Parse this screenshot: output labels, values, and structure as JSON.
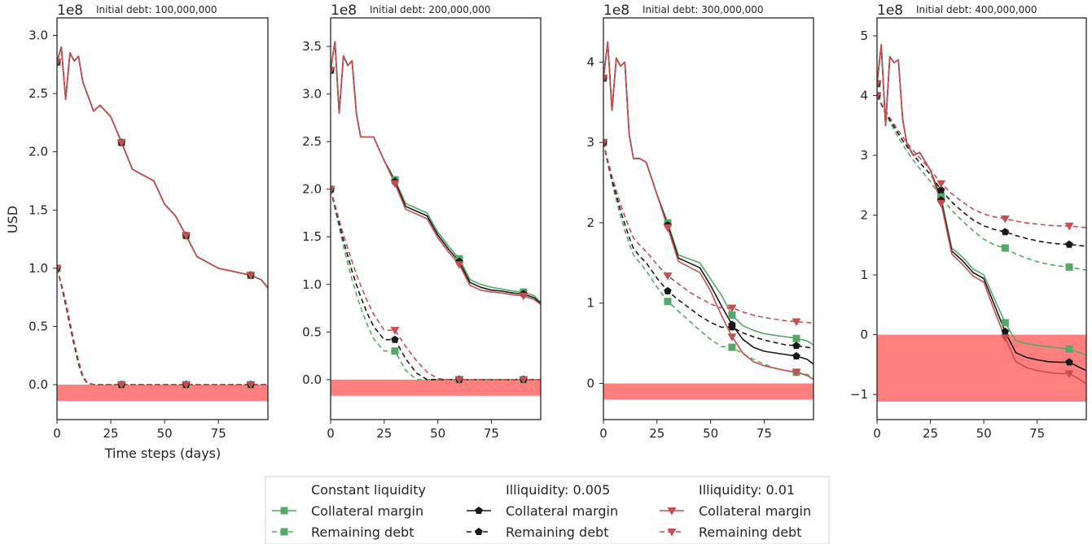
{
  "figure": {
    "ylabel": "USD",
    "xlabel": "Time steps (days)",
    "offset_text": "1e8"
  },
  "colors": {
    "constant": "#55a868",
    "illiq005": "#1a1a1a",
    "illiq01": "#c44e52",
    "band": "#ff7f7f",
    "frame": "#262626"
  },
  "legend": {
    "groups": [
      {
        "header": "Constant liquidity",
        "color_key": "constant",
        "marker": "square",
        "entries": [
          {
            "label": "Collateral margin",
            "style": "solid"
          },
          {
            "label": "Remaining debt",
            "style": "dashed"
          }
        ]
      },
      {
        "header": "Illiquidity: 0.005",
        "color_key": "illiq005",
        "marker": "pentagon",
        "entries": [
          {
            "label": "Collateral margin",
            "style": "solid"
          },
          {
            "label": "Remaining debt",
            "style": "dashed"
          }
        ]
      },
      {
        "header": "Illiquidity: 0.01",
        "color_key": "illiq01",
        "marker": "triangle-down",
        "entries": [
          {
            "label": "Collateral margin",
            "style": "solid"
          },
          {
            "label": "Remaining debt",
            "style": "dashed"
          }
        ]
      }
    ]
  },
  "chart_data": [
    {
      "type": "line",
      "title": "Initial debt: 100,000,000",
      "x_range": [
        0,
        98
      ],
      "xticks": [
        0,
        25,
        50,
        75
      ],
      "ylim": [
        -0.3,
        3.15
      ],
      "yticks": [
        0.0,
        0.5,
        1.0,
        1.5,
        2.0,
        2.5,
        3.0
      ],
      "y_units": "1e8 USD",
      "negative_band": [
        -0.14,
        0
      ],
      "x": [
        0,
        2,
        4,
        6,
        8,
        10,
        12,
        14,
        17,
        20,
        25,
        30,
        35,
        40,
        45,
        50,
        55,
        60,
        65,
        70,
        75,
        80,
        85,
        90,
        95,
        98
      ],
      "collateral_margin": {
        "constant": [
          2.77,
          2.9,
          2.45,
          2.85,
          2.78,
          2.82,
          2.6,
          2.5,
          2.35,
          2.4,
          2.3,
          2.08,
          1.85,
          1.8,
          1.75,
          1.55,
          1.45,
          1.28,
          1.1,
          1.05,
          1.0,
          0.98,
          0.96,
          0.94,
          0.9,
          0.83
        ],
        "illiq005": [
          2.77,
          2.9,
          2.45,
          2.85,
          2.78,
          2.82,
          2.6,
          2.5,
          2.35,
          2.4,
          2.3,
          2.08,
          1.85,
          1.8,
          1.75,
          1.55,
          1.45,
          1.28,
          1.1,
          1.05,
          1.0,
          0.98,
          0.96,
          0.94,
          0.9,
          0.83
        ],
        "illiq01": [
          2.77,
          2.9,
          2.45,
          2.85,
          2.78,
          2.82,
          2.6,
          2.5,
          2.35,
          2.4,
          2.3,
          2.08,
          1.85,
          1.8,
          1.75,
          1.55,
          1.45,
          1.28,
          1.1,
          1.05,
          1.0,
          0.98,
          0.96,
          0.94,
          0.9,
          0.83
        ]
      },
      "remaining_debt": {
        "constant": [
          1.0,
          0.85,
          0.68,
          0.5,
          0.33,
          0.17,
          0.06,
          0.01,
          0.0,
          0.0,
          0.0,
          0.0,
          0.0,
          0.0,
          0.0,
          0.0,
          0.0,
          0.0,
          0.0,
          0.0,
          0.0,
          0.0,
          0.0,
          0.0,
          0.0,
          0.0
        ],
        "illiq005": [
          1.0,
          0.86,
          0.7,
          0.52,
          0.35,
          0.19,
          0.07,
          0.02,
          0.0,
          0.0,
          0.0,
          0.0,
          0.0,
          0.0,
          0.0,
          0.0,
          0.0,
          0.0,
          0.0,
          0.0,
          0.0,
          0.0,
          0.0,
          0.0,
          0.0,
          0.0
        ],
        "illiq01": [
          1.0,
          0.87,
          0.72,
          0.54,
          0.37,
          0.21,
          0.08,
          0.02,
          0.0,
          0.0,
          0.0,
          0.0,
          0.0,
          0.0,
          0.0,
          0.0,
          0.0,
          0.0,
          0.0,
          0.0,
          0.0,
          0.0,
          0.0,
          0.0,
          0.0,
          0.0
        ]
      },
      "marker_x": [
        0,
        30,
        60,
        90
      ]
    },
    {
      "type": "line",
      "title": "Initial debt: 200,000,000",
      "x_range": [
        0,
        98
      ],
      "xticks": [
        0,
        25,
        50,
        75
      ],
      "ylim": [
        -0.42,
        3.8
      ],
      "yticks": [
        0.0,
        0.5,
        1.0,
        1.5,
        2.0,
        2.5,
        3.0,
        3.5
      ],
      "y_units": "1e8 USD",
      "negative_band": [
        -0.17,
        0
      ],
      "x": [
        0,
        2,
        4,
        6,
        8,
        10,
        12,
        14,
        17,
        20,
        25,
        30,
        35,
        40,
        45,
        50,
        55,
        60,
        65,
        70,
        75,
        80,
        85,
        90,
        95,
        98
      ],
      "collateral_margin": {
        "constant": [
          3.25,
          3.55,
          2.8,
          3.4,
          3.3,
          3.35,
          2.8,
          2.55,
          2.55,
          2.55,
          2.3,
          2.1,
          1.85,
          1.8,
          1.75,
          1.55,
          1.4,
          1.27,
          1.05,
          1.0,
          0.97,
          0.95,
          0.93,
          0.92,
          0.88,
          0.81
        ],
        "illiq005": [
          3.25,
          3.55,
          2.8,
          3.4,
          3.3,
          3.35,
          2.8,
          2.55,
          2.55,
          2.55,
          2.3,
          2.08,
          1.82,
          1.77,
          1.72,
          1.52,
          1.37,
          1.24,
          1.02,
          0.97,
          0.94,
          0.93,
          0.91,
          0.9,
          0.86,
          0.8
        ],
        "illiq01": [
          3.25,
          3.55,
          2.8,
          3.4,
          3.3,
          3.35,
          2.8,
          2.55,
          2.55,
          2.55,
          2.3,
          2.06,
          1.79,
          1.74,
          1.69,
          1.49,
          1.34,
          1.21,
          0.99,
          0.94,
          0.92,
          0.91,
          0.89,
          0.88,
          0.84,
          0.79
        ]
      },
      "remaining_debt": {
        "constant": [
          2.0,
          1.8,
          1.6,
          1.4,
          1.22,
          1.05,
          0.9,
          0.76,
          0.58,
          0.43,
          0.3,
          0.3,
          0.1,
          0.0,
          0.0,
          0.0,
          0.0,
          0.0,
          0.0,
          0.0,
          0.0,
          0.0,
          0.0,
          0.0,
          0.0,
          0.0
        ],
        "illiq005": [
          2.0,
          1.82,
          1.64,
          1.46,
          1.3,
          1.14,
          1.0,
          0.87,
          0.7,
          0.56,
          0.42,
          0.42,
          0.22,
          0.07,
          0.0,
          0.0,
          0.0,
          0.0,
          0.0,
          0.0,
          0.0,
          0.0,
          0.0,
          0.0,
          0.0,
          0.0
        ],
        "illiq01": [
          2.0,
          1.84,
          1.68,
          1.52,
          1.38,
          1.24,
          1.11,
          0.99,
          0.83,
          0.69,
          0.52,
          0.52,
          0.35,
          0.2,
          0.08,
          0.01,
          0.0,
          0.0,
          0.0,
          0.0,
          0.0,
          0.0,
          0.0,
          0.0,
          0.0,
          0.0
        ]
      },
      "marker_x": [
        0,
        30,
        60,
        90
      ]
    },
    {
      "type": "line",
      "title": "Initial debt: 300,000,000",
      "x_range": [
        0,
        98
      ],
      "xticks": [
        0,
        25,
        50,
        75
      ],
      "ylim": [
        -0.45,
        4.55
      ],
      "yticks": [
        0,
        1,
        2,
        3,
        4
      ],
      "y_units": "1e8 USD",
      "negative_band": [
        -0.2,
        0
      ],
      "x": [
        0,
        2,
        4,
        6,
        8,
        10,
        12,
        14,
        17,
        20,
        25,
        30,
        35,
        40,
        45,
        50,
        55,
        60,
        65,
        70,
        75,
        80,
        85,
        90,
        95,
        98
      ],
      "collateral_margin": {
        "constant": [
          3.8,
          4.25,
          3.4,
          4.05,
          3.95,
          4.0,
          3.1,
          2.8,
          2.8,
          2.75,
          2.35,
          2.0,
          1.6,
          1.55,
          1.5,
          1.3,
          1.1,
          0.85,
          0.72,
          0.66,
          0.62,
          0.6,
          0.58,
          0.56,
          0.53,
          0.48
        ],
        "illiq005": [
          3.8,
          4.25,
          3.4,
          4.05,
          3.95,
          4.0,
          3.1,
          2.8,
          2.8,
          2.75,
          2.35,
          1.97,
          1.56,
          1.5,
          1.44,
          1.22,
          0.97,
          0.73,
          0.55,
          0.45,
          0.4,
          0.38,
          0.36,
          0.34,
          0.3,
          0.24
        ],
        "illiq01": [
          3.8,
          4.25,
          3.4,
          4.05,
          3.95,
          4.0,
          3.1,
          2.8,
          2.8,
          2.75,
          2.35,
          1.94,
          1.52,
          1.45,
          1.38,
          1.15,
          0.85,
          0.58,
          0.38,
          0.27,
          0.22,
          0.19,
          0.16,
          0.14,
          0.1,
          0.05
        ]
      },
      "remaining_debt": {
        "constant": [
          3.0,
          2.74,
          2.5,
          2.28,
          2.08,
          1.9,
          1.74,
          1.6,
          1.5,
          1.4,
          1.2,
          1.02,
          0.9,
          0.78,
          0.66,
          0.55,
          0.46,
          0.45,
          0.37,
          0.3,
          0.24,
          0.19,
          0.16,
          0.14,
          0.11,
          0.09
        ],
        "illiq005": [
          3.0,
          2.76,
          2.54,
          2.34,
          2.15,
          1.98,
          1.82,
          1.68,
          1.58,
          1.5,
          1.31,
          1.15,
          1.04,
          0.94,
          0.84,
          0.76,
          0.7,
          0.7,
          0.63,
          0.58,
          0.54,
          0.51,
          0.48,
          0.47,
          0.45,
          0.44
        ],
        "illiq01": [
          3.0,
          2.78,
          2.58,
          2.4,
          2.23,
          2.08,
          1.94,
          1.81,
          1.72,
          1.64,
          1.48,
          1.34,
          1.24,
          1.14,
          1.06,
          0.99,
          0.94,
          0.94,
          0.89,
          0.85,
          0.82,
          0.8,
          0.78,
          0.77,
          0.76,
          0.75
        ]
      },
      "marker_x": [
        0,
        30,
        60,
        90
      ]
    },
    {
      "type": "line",
      "title": "Initial debt: 400,000,000",
      "x_range": [
        0,
        98
      ],
      "xticks": [
        0,
        25,
        50,
        75
      ],
      "ylim": [
        -1.42,
        5.3
      ],
      "yticks": [
        -1,
        0,
        1,
        2,
        3,
        4,
        5
      ],
      "y_units": "1e8 USD",
      "negative_band": [
        -1.12,
        0
      ],
      "x": [
        0,
        2,
        4,
        6,
        8,
        10,
        12,
        14,
        17,
        20,
        25,
        30,
        35,
        40,
        45,
        50,
        55,
        60,
        65,
        70,
        75,
        80,
        85,
        90,
        95,
        98
      ],
      "collateral_margin": {
        "constant": [
          4.2,
          4.85,
          3.5,
          4.65,
          4.55,
          4.6,
          3.6,
          3.2,
          3.0,
          3.05,
          2.75,
          2.3,
          1.45,
          1.3,
          1.1,
          1.0,
          0.6,
          0.2,
          -0.1,
          -0.15,
          -0.18,
          -0.2,
          -0.22,
          -0.24,
          -0.3,
          -0.35
        ],
        "illiq005": [
          4.2,
          4.85,
          3.5,
          4.65,
          4.55,
          4.6,
          3.6,
          3.2,
          3.0,
          3.05,
          2.75,
          2.25,
          1.4,
          1.24,
          1.04,
          0.94,
          0.5,
          0.05,
          -0.3,
          -0.38,
          -0.42,
          -0.45,
          -0.46,
          -0.46,
          -0.55,
          -0.6
        ],
        "illiq01": [
          4.2,
          4.85,
          3.5,
          4.65,
          4.55,
          4.6,
          3.6,
          3.2,
          3.0,
          3.05,
          2.75,
          2.2,
          1.35,
          1.18,
          0.98,
          0.88,
          0.4,
          -0.05,
          -0.45,
          -0.55,
          -0.6,
          -0.63,
          -0.65,
          -0.65,
          -0.75,
          -0.82
        ]
      },
      "remaining_debt": {
        "constant": [
          4.0,
          3.85,
          3.7,
          3.56,
          3.43,
          3.3,
          3.18,
          3.07,
          2.92,
          2.78,
          2.56,
          2.3,
          2.08,
          1.9,
          1.74,
          1.6,
          1.5,
          1.45,
          1.35,
          1.28,
          1.22,
          1.18,
          1.15,
          1.13,
          1.1,
          1.08
        ],
        "illiq005": [
          4.0,
          3.86,
          3.73,
          3.6,
          3.48,
          3.36,
          3.25,
          3.15,
          3.01,
          2.88,
          2.68,
          2.42,
          2.22,
          2.06,
          1.92,
          1.82,
          1.76,
          1.72,
          1.66,
          1.61,
          1.57,
          1.54,
          1.52,
          1.51,
          1.49,
          1.48
        ],
        "illiq01": [
          4.0,
          3.87,
          3.75,
          3.63,
          3.52,
          3.41,
          3.31,
          3.21,
          3.08,
          2.96,
          2.76,
          2.53,
          2.36,
          2.22,
          2.1,
          2.02,
          1.97,
          1.94,
          1.9,
          1.87,
          1.85,
          1.83,
          1.82,
          1.82,
          1.8,
          1.79
        ]
      },
      "marker_x": [
        0,
        30,
        60,
        90
      ]
    }
  ]
}
